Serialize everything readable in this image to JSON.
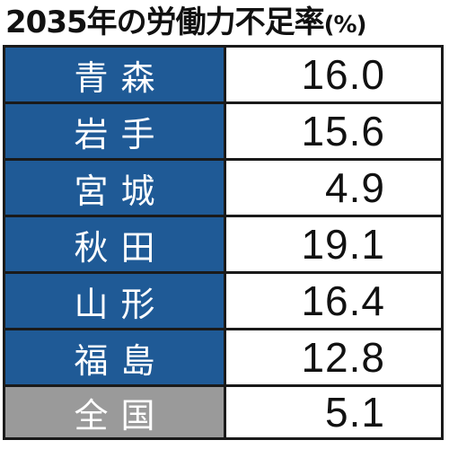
{
  "header": {
    "title": "2035年の労働力不足率",
    "unit": "(%)"
  },
  "colors": {
    "prefecture_cell": "#1f5a96",
    "national_cell": "#9a9a9a",
    "value_cell": "#ffffff",
    "border": "#1a1a1a"
  },
  "chart_data": {
    "type": "table",
    "title": "2035年の労働力不足率",
    "unit": "(%)",
    "rows": [
      {
        "name": "青森",
        "value": "16.0"
      },
      {
        "name": "岩手",
        "value": "15.6"
      },
      {
        "name": "宮城",
        "value": "4.9"
      },
      {
        "name": "秋田",
        "value": "19.1"
      },
      {
        "name": "山形",
        "value": "16.4"
      },
      {
        "name": "福島",
        "value": "12.8"
      },
      {
        "name": "全国",
        "value": "5.1"
      }
    ]
  }
}
